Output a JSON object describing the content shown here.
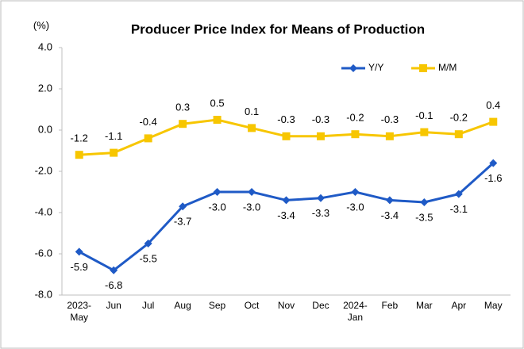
{
  "chart_data": {
    "type": "line",
    "title": "Producer Price Index for Means of Production",
    "y_unit": "(%)",
    "categories": [
      "2023-\nMay",
      "Jun",
      "Jul",
      "Aug",
      "Sep",
      "Oct",
      "Nov",
      "Dec",
      "2024-\nJan",
      "Feb",
      "Mar",
      "Apr",
      "May"
    ],
    "series": [
      {
        "name": "Y/Y",
        "color": "#1f5ac6",
        "marker": "diamond",
        "values": [
          -5.9,
          -6.8,
          -5.5,
          -3.7,
          -3.0,
          -3.0,
          -3.4,
          -3.3,
          -3.0,
          -3.4,
          -3.5,
          -3.1,
          -1.6
        ],
        "value_labels": [
          "-5.9",
          "-6.8",
          "-5.5",
          "-3.7",
          "-3.0",
          "-3.0",
          "-3.4",
          "-3.3",
          "-3.0",
          "-3.4",
          "-3.5",
          "-3.1",
          "-1.6"
        ],
        "label_side": "below"
      },
      {
        "name": "M/M",
        "color": "#f7c600",
        "marker": "square",
        "values": [
          -1.2,
          -1.1,
          -0.4,
          0.3,
          0.5,
          0.1,
          -0.3,
          -0.3,
          -0.2,
          -0.3,
          -0.1,
          -0.2,
          0.4
        ],
        "value_labels": [
          "-1.2",
          "-1.1",
          "-0.4",
          "0.3",
          "0.5",
          "0.1",
          "-0.3",
          "-0.3",
          "-0.2",
          "-0.3",
          "-0.1",
          "-0.2",
          "0.4"
        ],
        "label_side": "above"
      }
    ],
    "ylim": [
      -8,
      4
    ],
    "yticks": [
      {
        "value": -8,
        "label": "-8.0"
      },
      {
        "value": -6,
        "label": "-6.0"
      },
      {
        "value": -4,
        "label": "-4.0"
      },
      {
        "value": -2,
        "label": "-2.0"
      },
      {
        "value": 0,
        "label": "0.0"
      },
      {
        "value": 2,
        "label": "2.0"
      },
      {
        "value": 4,
        "label": "4.0"
      }
    ],
    "grid": false,
    "legend": "top-right"
  }
}
